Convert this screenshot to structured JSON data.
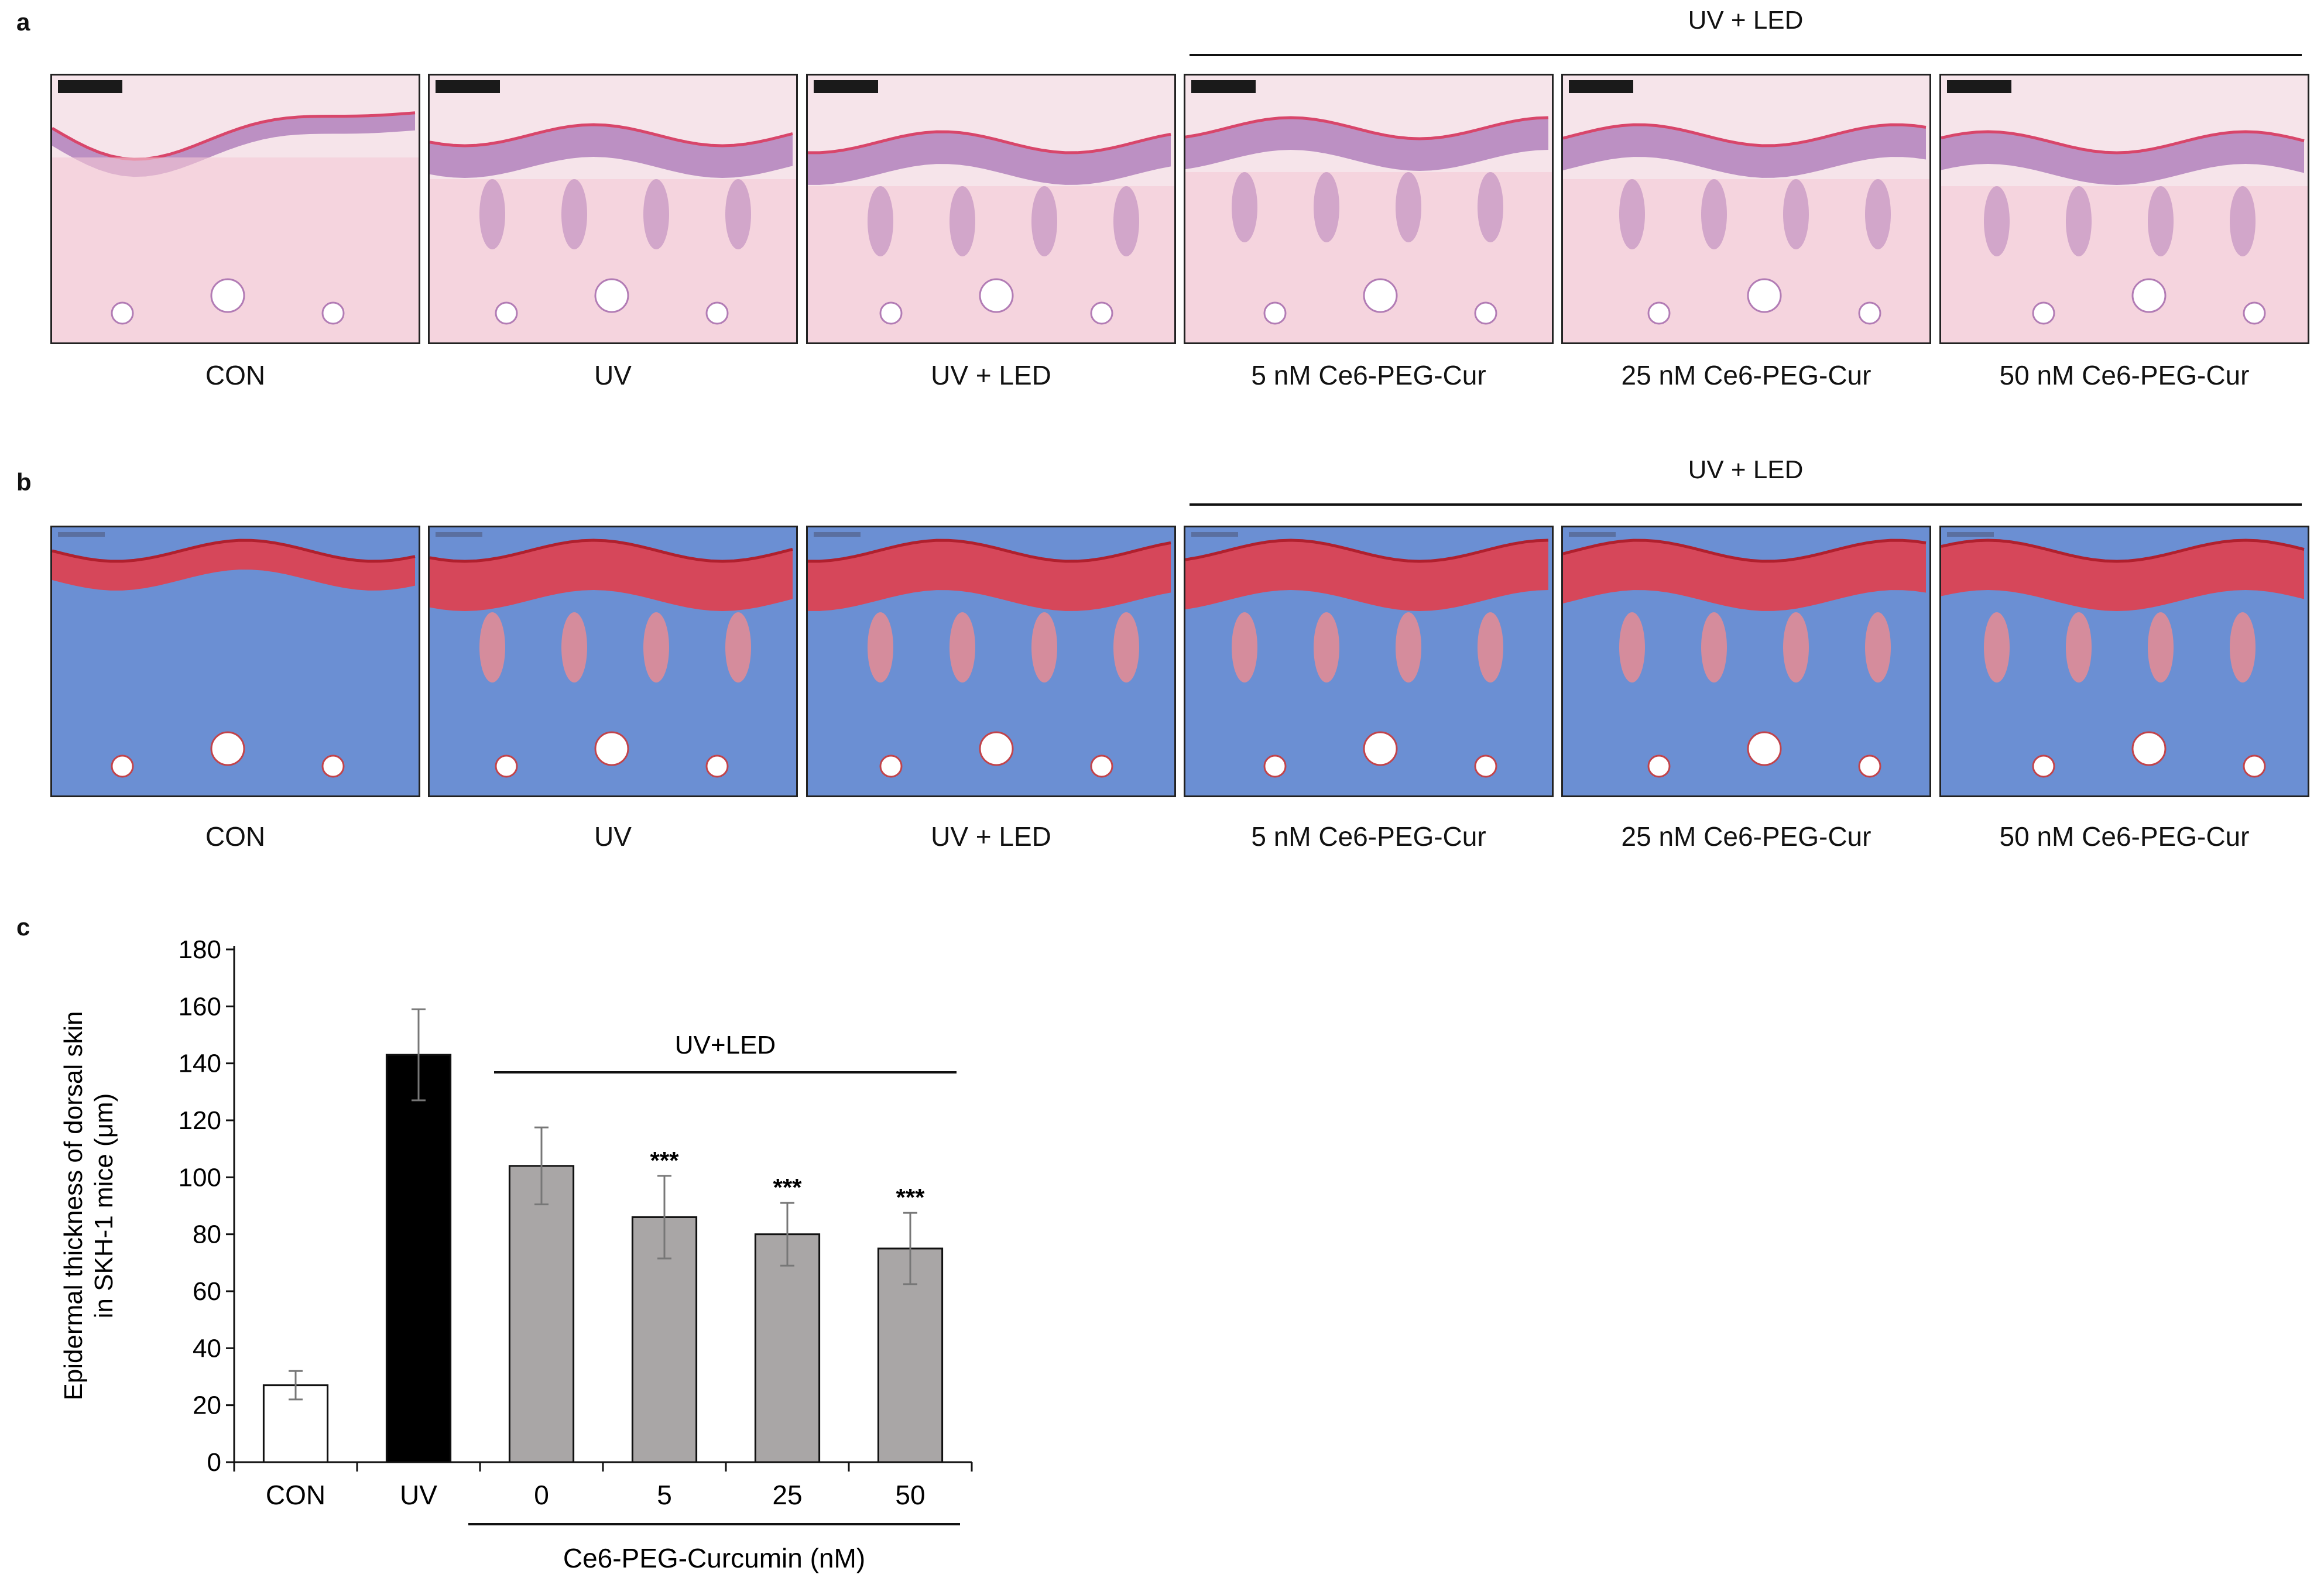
{
  "panel_a": {
    "label": "a",
    "bracket": "UV + LED",
    "stain_colors": [
      "#f5c9d6",
      "#8f5fa8"
    ],
    "captions": [
      "CON",
      "UV",
      "UV + LED",
      "5 nM Ce6-PEG-Cur",
      "25 nM Ce6-PEG-Cur",
      "50 nM Ce6-PEG-Cur"
    ]
  },
  "panel_b": {
    "label": "b",
    "bracket": "UV + LED",
    "stain_colors": [
      "#5a7ec9",
      "#e0414f"
    ],
    "captions": [
      "CON",
      "UV",
      "UV + LED",
      "5 nM Ce6-PEG-Cur",
      "25 nM Ce6-PEG-Cur",
      "50 nM Ce6-PEG-Cur"
    ]
  },
  "panel_c": {
    "label": "c"
  },
  "chart_data": {
    "type": "bar",
    "title": "",
    "ylabel": "Epidermal thickness of dorsal skin in SKH-1 mice (μm)",
    "ylabel_lines": [
      "Epidermal thickness of dorsal skin",
      "in SKH-1 mice (μm)"
    ],
    "xlabel": "Ce6-PEG-Curcumin (nM)",
    "bracket_label": "UV+LED",
    "ylim": [
      0,
      180
    ],
    "yticks": [
      "0",
      "20",
      "40",
      "60",
      "80",
      "100",
      "120",
      "140",
      "160",
      "180"
    ],
    "categories": [
      "CON",
      "UV",
      "0",
      "5",
      "25",
      "50"
    ],
    "values": [
      27,
      143,
      104,
      86,
      80,
      75
    ],
    "errors": [
      5,
      16,
      13.5,
      14.5,
      11,
      12.5
    ],
    "significance": [
      "",
      "",
      "",
      "***",
      "***",
      "***"
    ],
    "colors": [
      "#ffffff",
      "#000000",
      "#a9a6a6",
      "#a9a6a6",
      "#a9a6a6",
      "#a9a6a6"
    ]
  }
}
